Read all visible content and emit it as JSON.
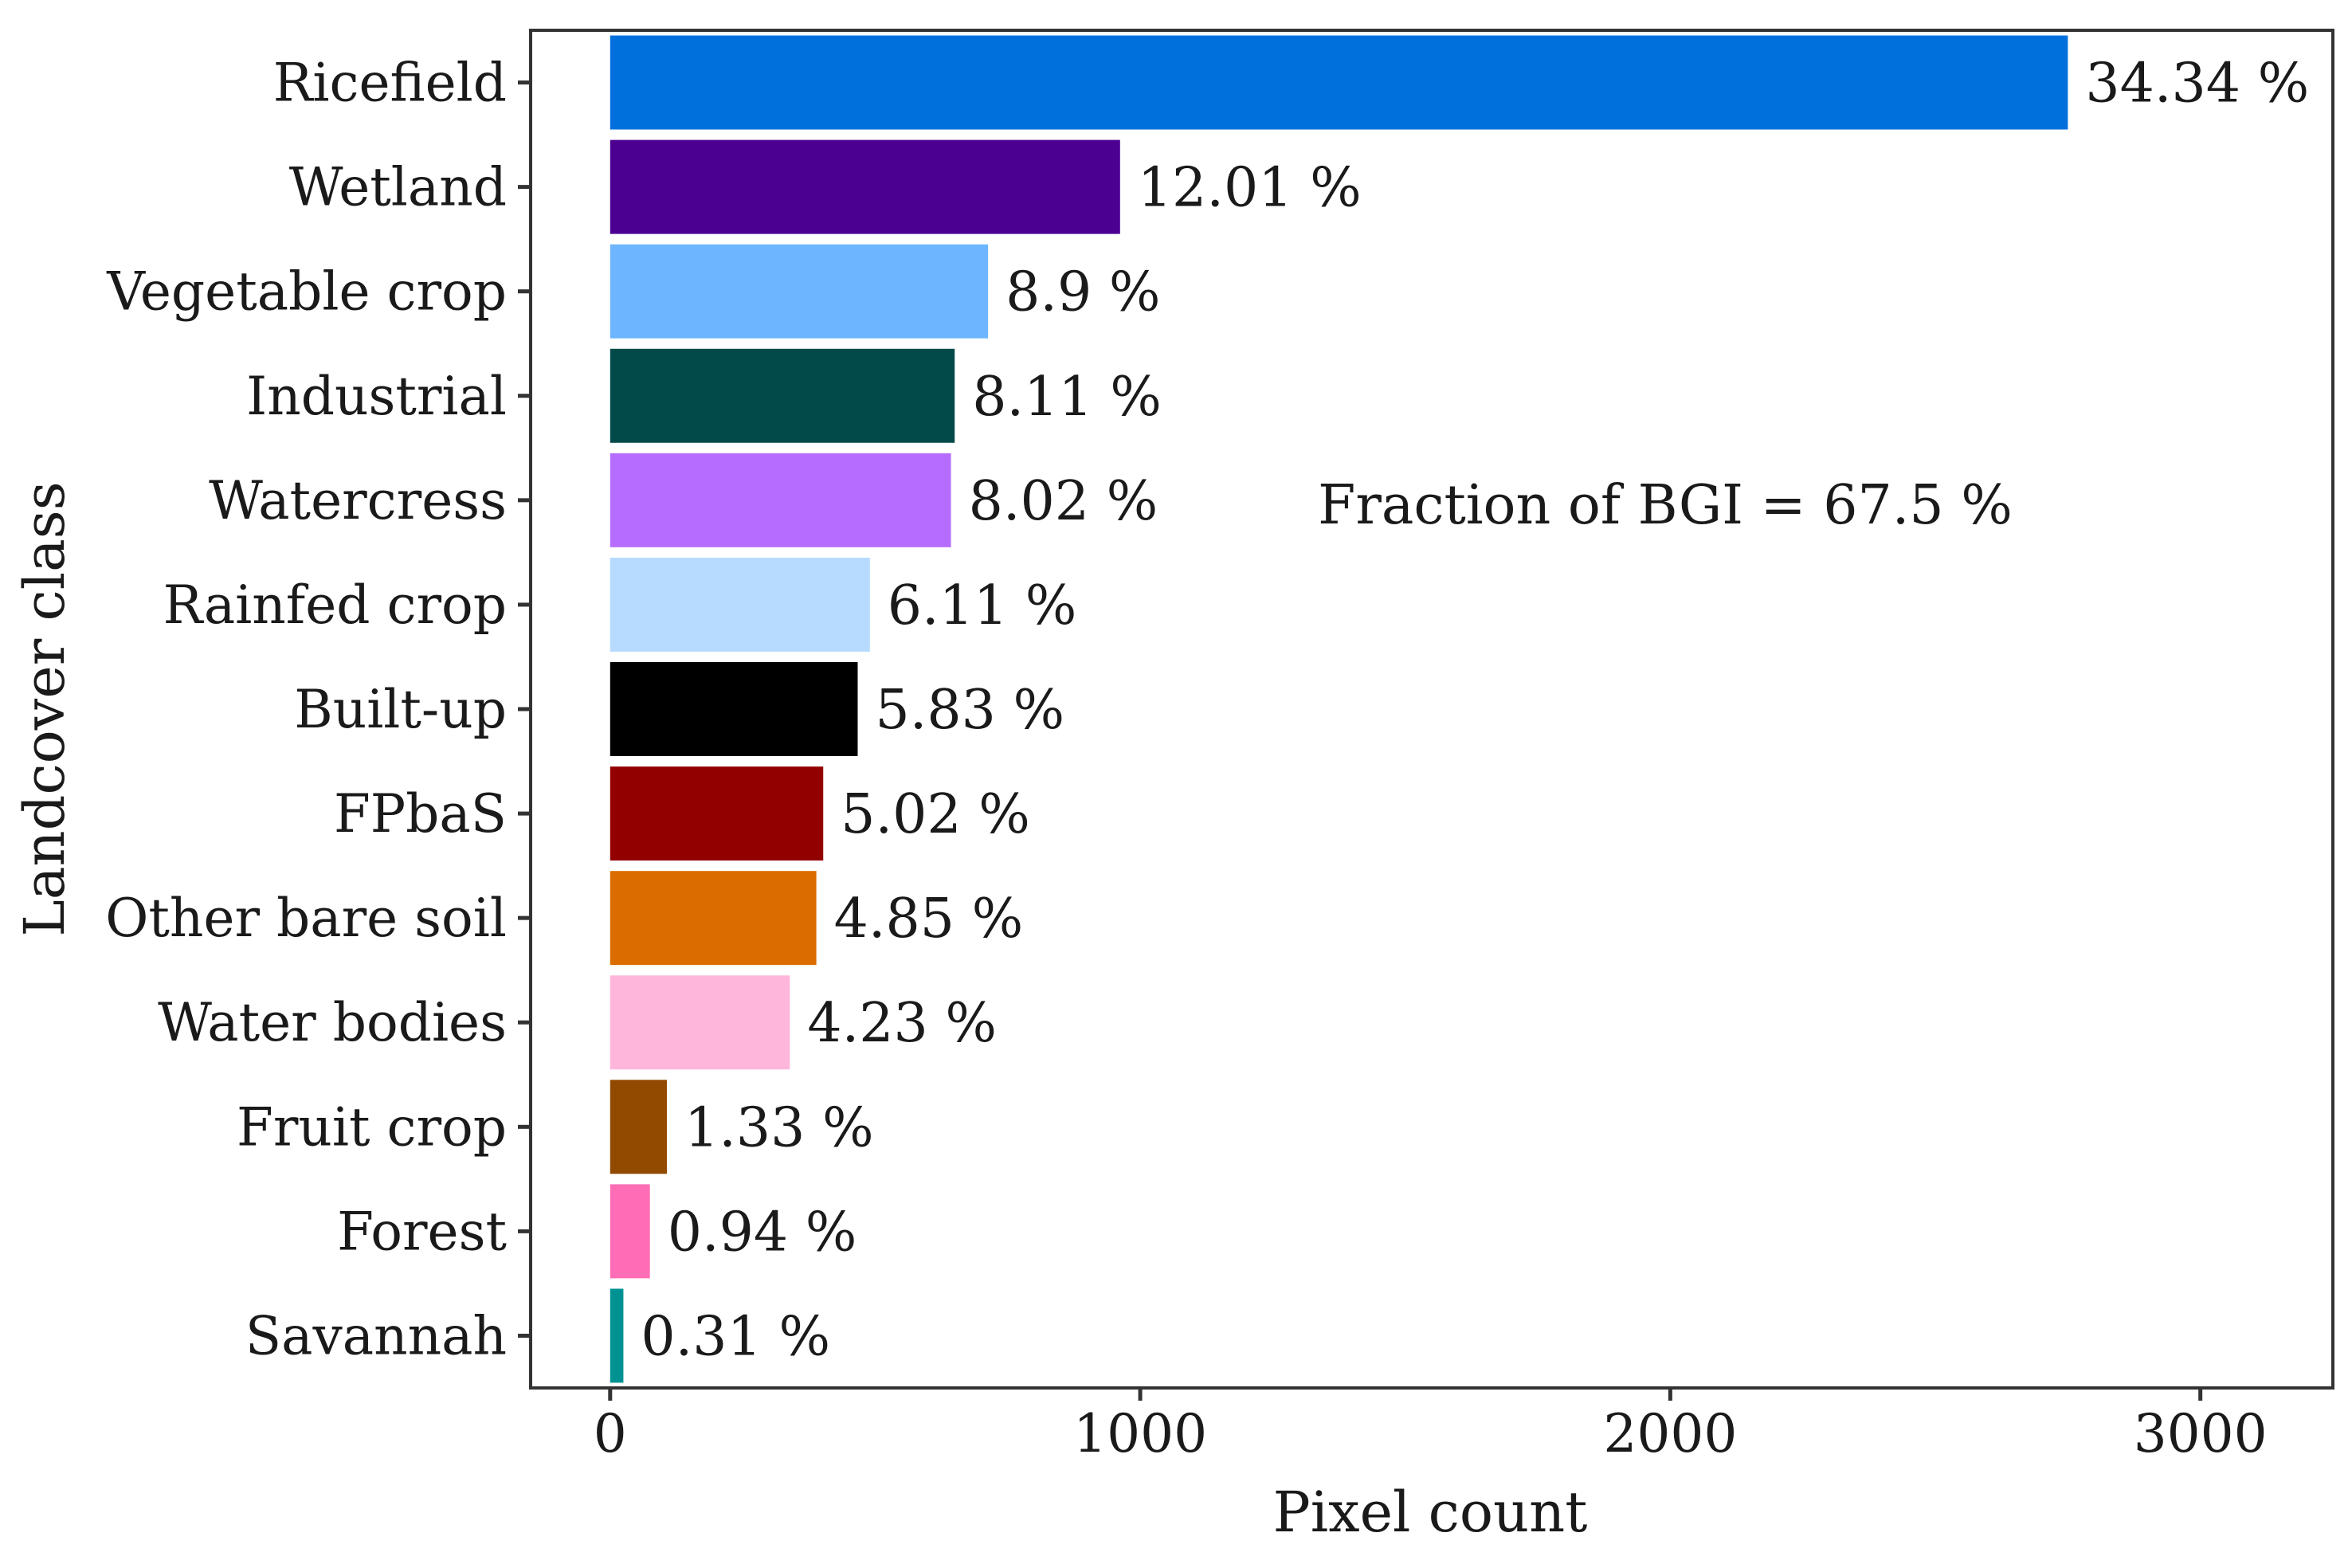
{
  "chart_data": {
    "type": "bar",
    "orientation": "horizontal",
    "title": "",
    "xlabel": "Pixel count",
    "ylabel": "Landcover class",
    "xlim": [
      -150,
      3250
    ],
    "xticks": [
      0,
      1000,
      2000,
      3000
    ],
    "grid": false,
    "legend": "none",
    "annotation": "Fraction of BGI = 67.5 %",
    "categories": [
      "Ricefield",
      "Wetland",
      "Vegetable crop",
      "Industrial",
      "Watercress",
      "Rainfed crop",
      "Built-up",
      "FPbaS",
      "Other bare soil",
      "Water bodies",
      "Fruit crop",
      "Forest",
      "Savannah"
    ],
    "values": [
      2750,
      962,
      713,
      650,
      643,
      490,
      467,
      402,
      389,
      339,
      107,
      75,
      25
    ],
    "labels": [
      "34.34 %",
      "12.01 %",
      "8.9 %",
      "8.11 %",
      "8.02 %",
      "6.11 %",
      "5.83 %",
      "5.02 %",
      "4.85 %",
      "4.23 %",
      "1.33 %",
      "0.94 %",
      "0.31 %"
    ],
    "colors": [
      "#0070DD",
      "#4B0092",
      "#6DB6FF",
      "#024A4A",
      "#B66DFF",
      "#B6DBFF",
      "#000000",
      "#920000",
      "#DB6D00",
      "#FFB6DB",
      "#924900",
      "#FF6DB6",
      "#009292"
    ]
  }
}
